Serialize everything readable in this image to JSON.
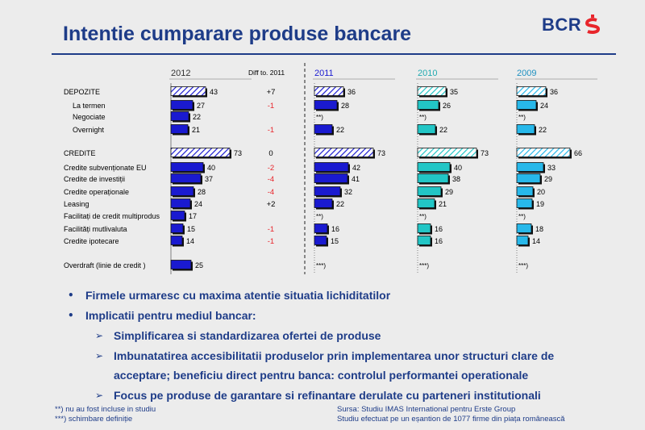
{
  "slide": {
    "title": "Intentie cumparare produse bancare",
    "brand": {
      "text": "BCR",
      "color": "#1e3c88",
      "accent": "#e8252b",
      "mark_icon": "bcr-logo-mark"
    }
  },
  "chart_data": {
    "type": "bar",
    "orientation": "horizontal",
    "diff_header": "Diff to. 2011",
    "categories": [
      {
        "key": "depozite",
        "label": "DEPOZITE",
        "bold": true
      },
      {
        "key": "la_termen",
        "label": "La termen",
        "indent": true
      },
      {
        "key": "negociate",
        "label": "Negociate",
        "indent": true
      },
      {
        "key": "overnight",
        "label": "Overnight",
        "indent": true
      },
      {
        "key": "credite",
        "label": "CREDITE",
        "bold": true
      },
      {
        "key": "subventionate",
        "label": "Credite subvenționate EU"
      },
      {
        "key": "investitii",
        "label": "Credite de investiții"
      },
      {
        "key": "operationale",
        "label": "Credite operaționale"
      },
      {
        "key": "leasing",
        "label": "Leasing"
      },
      {
        "key": "multiprodus",
        "label": "Facilitați de credit multiprodus"
      },
      {
        "key": "multivaluta",
        "label": "Facilități mutlivaluta"
      },
      {
        "key": "ipotecare",
        "label": "Credite ipotecare"
      },
      {
        "key": "overdraft",
        "label": "Overdraft (linie de credit )"
      }
    ],
    "series": [
      {
        "name": "2012",
        "color": "#1a1ad0",
        "values": [
          43,
          27,
          22,
          21,
          73,
          40,
          37,
          28,
          24,
          17,
          15,
          14,
          25
        ],
        "notes": [
          null,
          null,
          null,
          null,
          null,
          null,
          null,
          null,
          null,
          null,
          null,
          null,
          null
        ],
        "diff": [
          "+7",
          "-1",
          "",
          "-1",
          "0",
          "-2",
          "-4",
          "-4",
          "+2",
          "",
          "-1",
          "-1",
          ""
        ]
      },
      {
        "name": "2011",
        "color": "#1a1ad0",
        "values": [
          36,
          28,
          null,
          22,
          73,
          42,
          41,
          32,
          22,
          null,
          16,
          15,
          null
        ],
        "notes": [
          null,
          null,
          "**)",
          null,
          null,
          null,
          null,
          null,
          null,
          "**)",
          null,
          null,
          "***)"
        ]
      },
      {
        "name": "2010",
        "color": "#22c6c6",
        "values": [
          35,
          26,
          null,
          22,
          73,
          40,
          38,
          29,
          21,
          null,
          16,
          16,
          null
        ],
        "notes": [
          null,
          null,
          "**)",
          null,
          null,
          null,
          null,
          null,
          null,
          "**)",
          null,
          null,
          "***)"
        ]
      },
      {
        "name": "2009",
        "color": "#27b8ea",
        "values": [
          36,
          24,
          null,
          22,
          66,
          33,
          29,
          20,
          19,
          null,
          18,
          14,
          null
        ],
        "notes": [
          null,
          null,
          "**)",
          null,
          null,
          null,
          null,
          null,
          null,
          "**)",
          null,
          null,
          "***)"
        ]
      }
    ],
    "hatched_categories": [
      "depozite",
      "credite"
    ],
    "diff_colors": {
      "positive": "#000000",
      "negative": "#e8252b",
      "neutral": "#000000"
    }
  },
  "bullets": [
    {
      "level": 1,
      "text": "Firmele urmaresc cu maxima atentie situatia lichiditatilor"
    },
    {
      "level": 1,
      "text": "Implicatii pentru mediul bancar:"
    },
    {
      "level": 2,
      "text": "Simplificarea si standardizarea ofertei de produse"
    },
    {
      "level": 2,
      "text": "Imbunatatirea accesibilitatii produselor prin implementarea unor structuri clare de"
    },
    {
      "level": 3,
      "text": "acceptare; beneficiu direct pentru banca: controlul performantei operationale"
    },
    {
      "level": 2,
      "text": "Focus pe produse de garantare si refinantare derulate cu parteneri institutionali"
    }
  ],
  "footnotes": {
    "left": [
      "**) nu au fost incluse in studiu",
      "***) schimbare definiție"
    ],
    "right": [
      "Sursa: Studiu IMAS International pentru Erste Group",
      "Studiu efectuat pe un eșantion  de 1077 firme din piața românească"
    ]
  }
}
